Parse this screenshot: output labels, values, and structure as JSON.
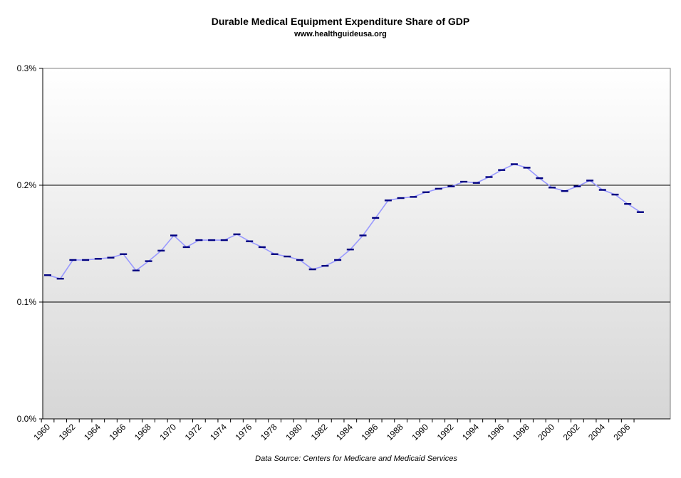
{
  "chart_data": {
    "type": "line",
    "title": "Durable Medical Equipment Expenditure Share of GDP",
    "subtitle": "www.healthguideusa.org",
    "source": "Data Source: Centers for Medicare and Medicaid Services",
    "xlabel": "",
    "ylabel": "",
    "ylim": [
      0,
      0.3
    ],
    "y_ticks": [
      {
        "value": 0.0,
        "label": "0.0%"
      },
      {
        "value": 0.1,
        "label": "0.1%"
      },
      {
        "value": 0.2,
        "label": "0.2%"
      },
      {
        "value": 0.3,
        "label": "0.3%"
      }
    ],
    "x_tick_labels": [
      "1960",
      "1962",
      "1964",
      "1966",
      "1968",
      "1970",
      "1972",
      "1974",
      "1976",
      "1978",
      "1980",
      "1982",
      "1984",
      "1986",
      "1988",
      "1990",
      "1992",
      "1994",
      "1996",
      "1998",
      "2000",
      "2002",
      "2004",
      "2006"
    ],
    "x": [
      1960,
      1961,
      1962,
      1963,
      1964,
      1965,
      1966,
      1967,
      1968,
      1969,
      1970,
      1971,
      1972,
      1973,
      1974,
      1975,
      1976,
      1977,
      1978,
      1979,
      1980,
      1981,
      1982,
      1983,
      1984,
      1985,
      1986,
      1987,
      1988,
      1989,
      1990,
      1991,
      1992,
      1993,
      1994,
      1995,
      1996,
      1997,
      1998,
      1999,
      2000,
      2001,
      2002,
      2003,
      2004,
      2005,
      2006,
      2007
    ],
    "series": [
      {
        "values": [
          0.123,
          0.12,
          0.136,
          0.136,
          0.137,
          0.138,
          0.141,
          0.127,
          0.135,
          0.144,
          0.157,
          0.147,
          0.153,
          0.153,
          0.153,
          0.158,
          0.152,
          0.147,
          0.141,
          0.139,
          0.136,
          0.128,
          0.131,
          0.136,
          0.145,
          0.157,
          0.172,
          0.187,
          0.189,
          0.19,
          0.194,
          0.197,
          0.199,
          0.203,
          0.202,
          0.207,
          0.213,
          0.218,
          0.215,
          0.206,
          0.198,
          0.195,
          0.199,
          0.204,
          0.196,
          0.192,
          0.184,
          0.177
        ],
        "color": "#9999ff",
        "marker_color": "#000080"
      }
    ],
    "grid": true,
    "legend": "none",
    "plot_background": "gradient white to light gray"
  }
}
